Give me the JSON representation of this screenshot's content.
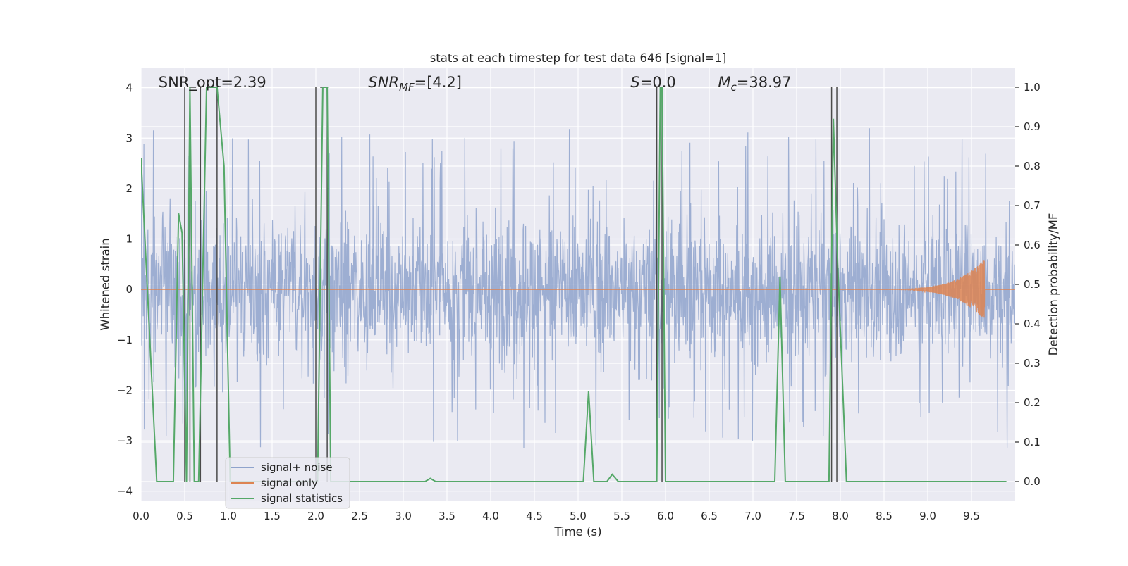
{
  "chart_data": {
    "type": "line",
    "title": "stats at each timestep for test data 646 [signal=1]",
    "xlabel": "Time (s)",
    "ylabel_left": "Whitened strain",
    "ylabel_right": "Detection probability/MF",
    "xlim": [
      0,
      10
    ],
    "ylim_left": [
      -4.2,
      4.4
    ],
    "ylim_right": [
      -0.05,
      1.05
    ],
    "grid": true,
    "legend_position": "lower-left",
    "x_ticks": [
      "0.0",
      "0.5",
      "1.0",
      "1.5",
      "2.0",
      "2.5",
      "3.0",
      "3.5",
      "4.0",
      "4.5",
      "5.0",
      "5.5",
      "6.0",
      "6.5",
      "7.0",
      "7.5",
      "8.0",
      "8.5",
      "9.0",
      "9.5"
    ],
    "x_tick_values": [
      0,
      0.5,
      1,
      1.5,
      2,
      2.5,
      3,
      3.5,
      4,
      4.5,
      5,
      5.5,
      6,
      6.5,
      7,
      7.5,
      8,
      8.5,
      9,
      9.5
    ],
    "y_left_ticks": [
      "4",
      "3",
      "2",
      "1",
      "0",
      "−1",
      "−2",
      "−3",
      "−4"
    ],
    "y_left_tick_values": [
      4,
      3,
      2,
      1,
      0,
      -1,
      -2,
      -3,
      -4
    ],
    "y_right_ticks": [
      "1.0",
      "0.9",
      "0.8",
      "0.7",
      "0.6",
      "0.5",
      "0.4",
      "0.3",
      "0.2",
      "0.1",
      "0.0"
    ],
    "y_right_tick_values": [
      1.0,
      0.9,
      0.8,
      0.7,
      0.6,
      0.5,
      0.4,
      0.3,
      0.2,
      0.1,
      0.0
    ],
    "annotations": {
      "snr_opt": {
        "text": "SNR_opt=2.39",
        "x": 0.2
      },
      "snr_mf": {
        "main": "SNR",
        "sub": "MF",
        "rest": "=[4.2]",
        "x": 2.6
      },
      "s": {
        "main": "S",
        "rest": "=0.0",
        "x": 5.6
      },
      "mc": {
        "main": "M",
        "sub": "c",
        "rest": "=38.97",
        "x": 6.6
      }
    },
    "series": [
      {
        "name": "signal+ noise",
        "color": "#8fa3cc",
        "axis": "left",
        "kind": "noise",
        "amplitude_envelope": {
          "core": 1.4,
          "peaks_upper": 3.2,
          "peaks_lower": -3.3
        }
      },
      {
        "name": "signal only",
        "color": "#dd8452",
        "axis": "left",
        "kind": "chirp",
        "chirp_start": 8.3,
        "chirp_end": 9.65,
        "peak_amplitude": 0.6
      },
      {
        "name": "signal statistics",
        "color": "#55a868",
        "axis": "right",
        "x": [
          0.0,
          0.18,
          0.37,
          0.43,
          0.47,
          0.52,
          0.56,
          0.61,
          0.66,
          0.75,
          0.87,
          0.95,
          1.02,
          1.1,
          1.2,
          1.4,
          1.6,
          1.8,
          2.0,
          2.02,
          2.08,
          2.13,
          2.17,
          2.25,
          3.0,
          3.25,
          3.31,
          3.37,
          4.0,
          5.0,
          5.06,
          5.12,
          5.18,
          5.25,
          5.33,
          5.39,
          5.46,
          5.9,
          5.94,
          5.96,
          6.0,
          6.5,
          7.25,
          7.31,
          7.37,
          7.87,
          7.92,
          7.97,
          8.07,
          9.0,
          9.9
        ],
        "values": [
          0.82,
          0.0,
          0.0,
          0.68,
          0.63,
          0.0,
          1.0,
          0.0,
          0.0,
          1.0,
          1.0,
          0.8,
          0.0,
          0.0,
          0.0,
          0.0,
          0.0,
          0.0,
          0.0,
          0.0,
          1.0,
          1.0,
          0.0,
          0.0,
          0.0,
          0.0,
          0.008,
          0.0,
          0.0,
          0.0,
          0.0,
          0.23,
          0.0,
          0.0,
          0.0,
          0.018,
          0.0,
          0.0,
          1.0,
          1.0,
          0.0,
          0.0,
          0.0,
          0.52,
          0.0,
          0.0,
          0.92,
          0.55,
          0.0,
          0.0,
          0.0
        ]
      }
    ],
    "vertical_lines": {
      "color": "#4a4a4a",
      "axis": "right",
      "items": [
        {
          "x": 0.5,
          "top": 1.0
        },
        {
          "x": 0.56,
          "top": 1.0
        },
        {
          "x": 0.68,
          "top": 1.0
        },
        {
          "x": 0.87,
          "top": 1.0
        },
        {
          "x": 2.0,
          "top": 1.0
        },
        {
          "x": 2.13,
          "top": 1.0
        },
        {
          "x": 5.9,
          "top": 1.0
        },
        {
          "x": 5.96,
          "top": 1.0
        },
        {
          "x": 7.9,
          "top": 1.0
        },
        {
          "x": 7.96,
          "top": 1.0
        }
      ]
    },
    "short_horizontal_segments": [
      {
        "x0": 0.55,
        "x1": 0.63,
        "y": 1.0
      },
      {
        "x0": 2.05,
        "x1": 2.14,
        "y": 1.0
      }
    ]
  }
}
